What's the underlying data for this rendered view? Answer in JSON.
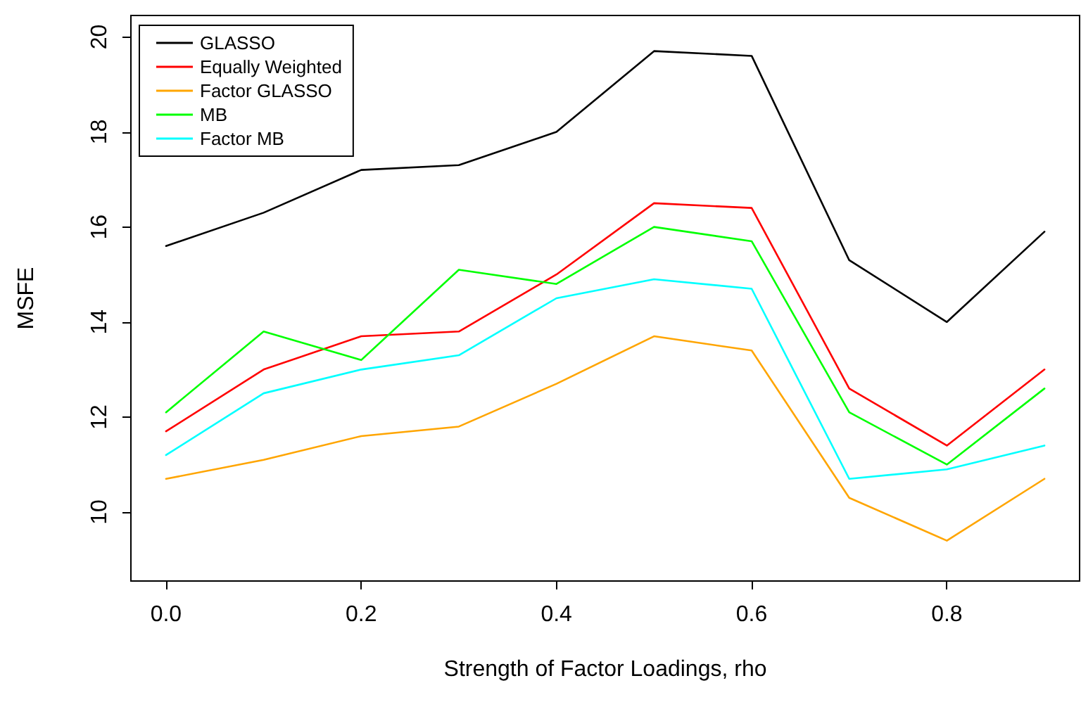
{
  "chart_data": {
    "type": "line",
    "xlabel": "Strength of Factor Loadings, rho",
    "ylabel": "MSFE",
    "x": [
      0.0,
      0.1,
      0.2,
      0.3,
      0.4,
      0.5,
      0.6,
      0.7,
      0.8,
      0.9
    ],
    "series": [
      {
        "name": "GLASSO",
        "color": "#000000",
        "values": [
          15.6,
          16.3,
          17.2,
          17.3,
          18.0,
          19.7,
          19.6,
          15.3,
          14.0,
          15.9
        ]
      },
      {
        "name": "Equally Weighted",
        "color": "#ff0000",
        "values": [
          11.7,
          13.0,
          13.7,
          13.8,
          15.0,
          16.5,
          16.4,
          12.6,
          11.4,
          13.0
        ]
      },
      {
        "name": "Factor GLASSO",
        "color": "#ffa500",
        "values": [
          10.7,
          11.1,
          11.6,
          11.8,
          12.7,
          13.7,
          13.4,
          10.3,
          9.4,
          10.7
        ]
      },
      {
        "name": "MB",
        "color": "#00ff00",
        "values": [
          12.1,
          13.8,
          13.2,
          15.1,
          14.8,
          16.0,
          15.7,
          12.1,
          11.0,
          12.6
        ]
      },
      {
        "name": "Factor MB",
        "color": "#00ffff",
        "values": [
          11.2,
          12.5,
          13.0,
          13.3,
          14.5,
          14.9,
          14.7,
          10.7,
          10.9,
          11.4
        ]
      }
    ],
    "xlim": [
      -0.036,
      0.936
    ],
    "xticks": [
      {
        "value": 0,
        "label": "0.0"
      },
      {
        "value": 0.2,
        "label": "0.2"
      },
      {
        "value": 0.4,
        "label": "0.4"
      },
      {
        "value": 0.6,
        "label": "0.6"
      },
      {
        "value": 0.8,
        "label": "0.8"
      }
    ],
    "ylim": [
      8.55,
      20.45
    ],
    "yticks": [
      10,
      12,
      14,
      16,
      18,
      20
    ],
    "grid": false,
    "legend": "top left",
    "marker": "none",
    "line_style": "solid"
  }
}
